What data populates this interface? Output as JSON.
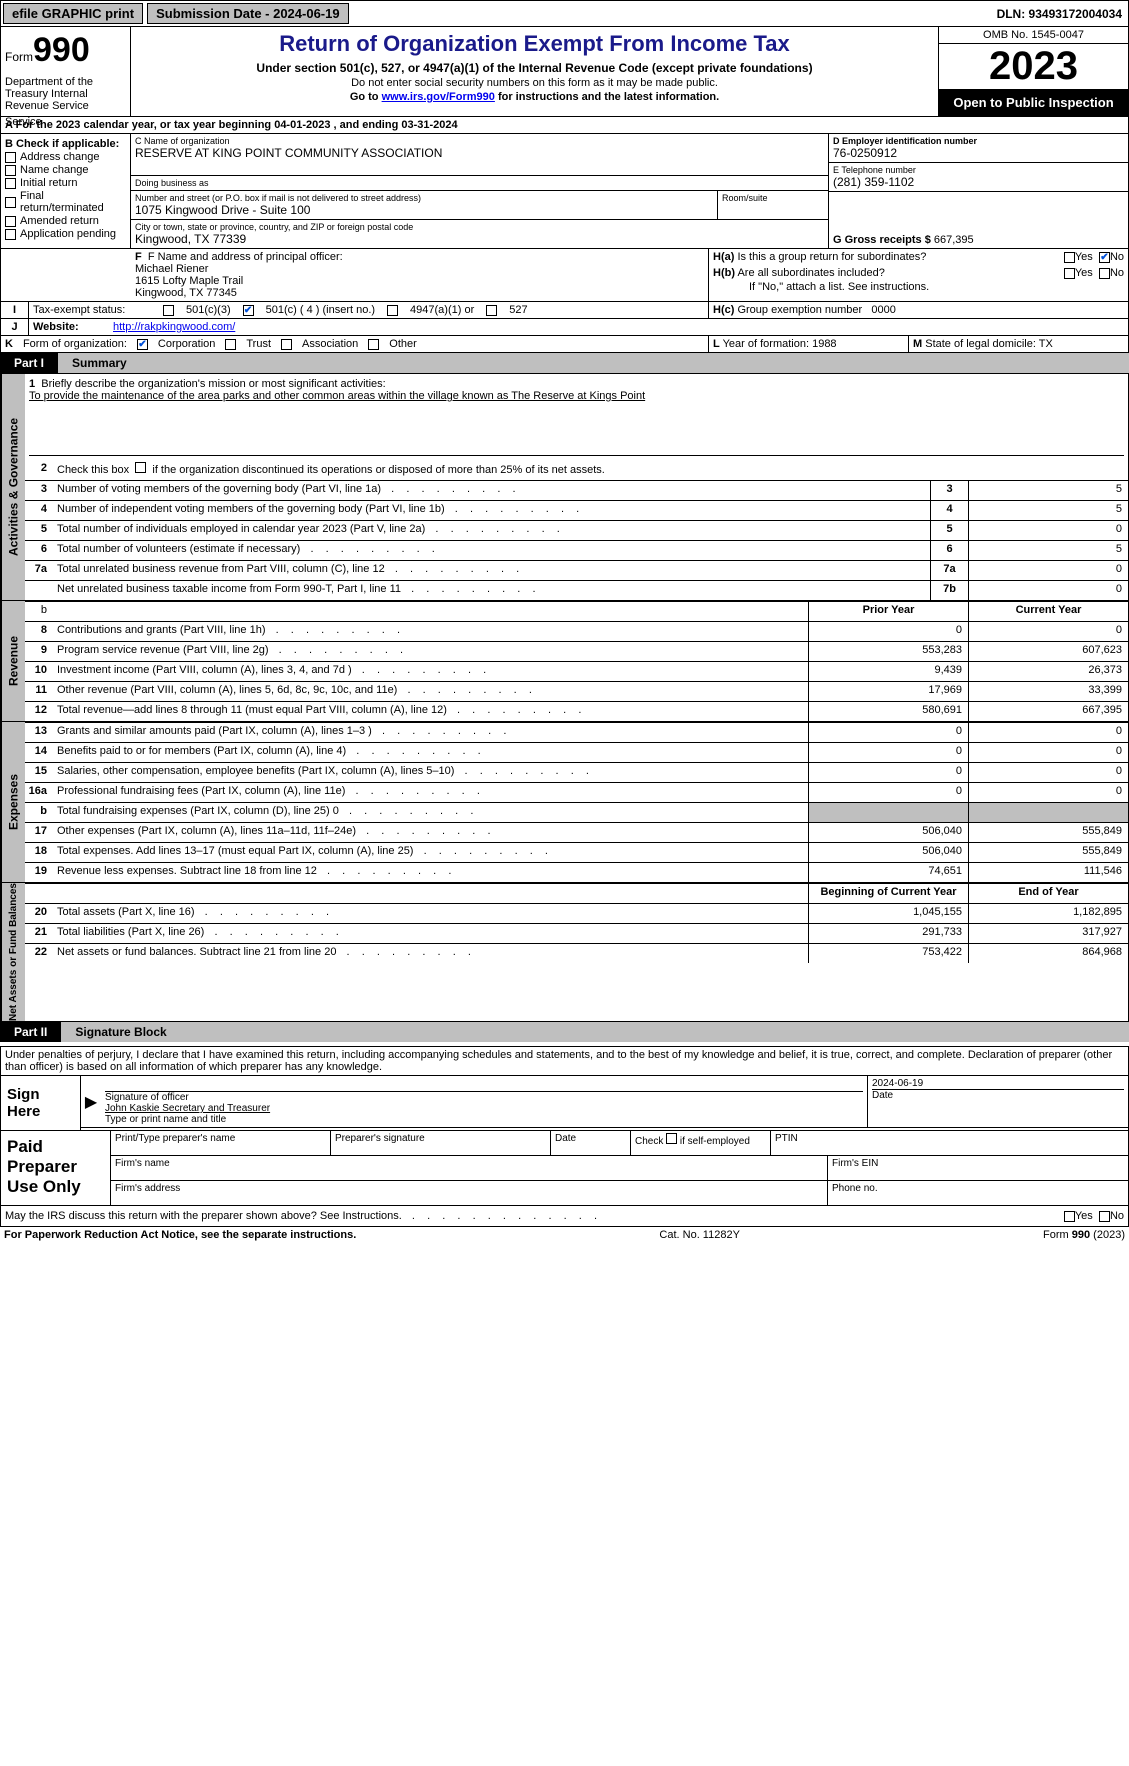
{
  "topbar": {
    "efile": "efile GRAPHIC print",
    "sub_label": "Submission Date - 2024-06-19",
    "dln": "DLN: 93493172004034"
  },
  "header": {
    "form_word": "Form",
    "form_num": "990",
    "dept": "Department of the Treasury Internal Revenue Service",
    "title": "Return of Organization Exempt From Income Tax",
    "sub": "Under section 501(c), 527, or 4947(a)(1) of the Internal Revenue Code (except private foundations)",
    "note1": "Do not enter social security numbers on this form as it may be made public.",
    "note2_pre": "Go to ",
    "note2_link": "www.irs.gov/Form990",
    "note2_post": " for instructions and the latest information.",
    "omb": "OMB No. 1545-0047",
    "year": "2023",
    "open": "Open to Public Inspection"
  },
  "line_a": "For the 2023 calendar year, or tax year beginning 04-01-2023    , and ending 03-31-2024",
  "box_b": {
    "label": "B Check if applicable:",
    "items": [
      "Address change",
      "Name change",
      "Initial return",
      "Final return/terminated",
      "Amended return",
      "Application pending"
    ]
  },
  "box_c": {
    "name_label": "C Name of organization",
    "name": "RESERVE AT KING POINT COMMUNITY ASSOCIATION",
    "dba_label": "Doing business as",
    "dba": "",
    "addr_label": "Number and street (or P.O. box if mail is not delivered to street address)",
    "addr": "1075 Kingwood Drive - Suite 100",
    "room_label": "Room/suite",
    "city_label": "City or town, state or province, country, and ZIP or foreign postal code",
    "city": "Kingwood, TX  77339"
  },
  "box_d": {
    "label": "D Employer identification number",
    "val": "76-0250912"
  },
  "box_e": {
    "label": "E Telephone number",
    "val": "(281) 359-1102"
  },
  "box_g": {
    "label": "G Gross receipts $",
    "val": "667,395"
  },
  "box_f": {
    "label": "F  Name and address of principal officer:",
    "name": "Michael Riener",
    "addr1": "1615 Lofty Maple Trail",
    "addr2": "Kingwood, TX  77345"
  },
  "box_h": {
    "a_label": "H(a)  Is this a group return for subordinates?",
    "b_label": "H(b)  Are all subordinates included?",
    "b_note": "If \"No,\" attach a list. See instructions.",
    "c_label": "H(c)  Group exemption number",
    "c_val": "0000",
    "yes": "Yes",
    "no": "No"
  },
  "tax_status": {
    "i": "I",
    "label": "Tax-exempt status:",
    "c3": "501(c)(3)",
    "c": "501(c) ( 4 ) (insert no.)",
    "a1": "4947(a)(1) or",
    "s527": "527"
  },
  "box_j": {
    "j": "J",
    "label": "Website:",
    "val": "http://rakpkingwood.com/"
  },
  "box_k": {
    "k": "K",
    "label": "Form of organization:",
    "corp": "Corporation",
    "trust": "Trust",
    "assoc": "Association",
    "other": "Other"
  },
  "box_l": {
    "label": "L Year of formation:",
    "val": "1988"
  },
  "box_m": {
    "label": "M State of legal domicile:",
    "val": "TX"
  },
  "part1": {
    "hdr": "Part I",
    "title": "Summary",
    "side1": "Activities & Governance",
    "side2": "Revenue",
    "side3": "Expenses",
    "side4": "Net Assets or Fund Balances",
    "mission_label": "1  Briefly describe the organization's mission or most significant activities:",
    "mission": "To provide the maintenance of the area parks and other common areas within the village known as The Reserve at Kings Point",
    "line2": "Check this box         if the organization discontinued its operations or disposed of more than 25% of its net assets.",
    "rows_gov": [
      {
        "num": "3",
        "text": "Number of voting members of the governing body (Part VI, line 1a)",
        "box": "3",
        "val": "5"
      },
      {
        "num": "4",
        "text": "Number of independent voting members of the governing body (Part VI, line 1b)",
        "box": "4",
        "val": "5"
      },
      {
        "num": "5",
        "text": "Total number of individuals employed in calendar year 2023 (Part V, line 2a)",
        "box": "5",
        "val": "0"
      },
      {
        "num": "6",
        "text": "Total number of volunteers (estimate if necessary)",
        "box": "6",
        "val": "5"
      },
      {
        "num": "7a",
        "text": "Total unrelated business revenue from Part VIII, column (C), line 12",
        "box": "7a",
        "val": "0"
      },
      {
        "num": "",
        "text": "Net unrelated business taxable income from Form 990-T, Part I, line 11",
        "box": "7b",
        "val": "0"
      }
    ],
    "prior_hdr": "Prior Year",
    "curr_hdr": "Current Year",
    "rows_rev": [
      {
        "num": "8",
        "text": "Contributions and grants (Part VIII, line 1h)",
        "prior": "0",
        "curr": "0"
      },
      {
        "num": "9",
        "text": "Program service revenue (Part VIII, line 2g)",
        "prior": "553,283",
        "curr": "607,623"
      },
      {
        "num": "10",
        "text": "Investment income (Part VIII, column (A), lines 3, 4, and 7d )",
        "prior": "9,439",
        "curr": "26,373"
      },
      {
        "num": "11",
        "text": "Other revenue (Part VIII, column (A), lines 5, 6d, 8c, 9c, 10c, and 11e)",
        "prior": "17,969",
        "curr": "33,399"
      },
      {
        "num": "12",
        "text": "Total revenue—add lines 8 through 11 (must equal Part VIII, column (A), line 12)",
        "prior": "580,691",
        "curr": "667,395"
      }
    ],
    "rows_exp": [
      {
        "num": "13",
        "text": "Grants and similar amounts paid (Part IX, column (A), lines 1–3 )",
        "prior": "0",
        "curr": "0"
      },
      {
        "num": "14",
        "text": "Benefits paid to or for members (Part IX, column (A), line 4)",
        "prior": "0",
        "curr": "0"
      },
      {
        "num": "15",
        "text": "Salaries, other compensation, employee benefits (Part IX, column (A), lines 5–10)",
        "prior": "0",
        "curr": "0"
      },
      {
        "num": "16a",
        "text": "Professional fundraising fees (Part IX, column (A), line 11e)",
        "prior": "0",
        "curr": "0"
      },
      {
        "num": "b",
        "text": "Total fundraising expenses (Part IX, column (D), line 25) 0",
        "prior": "",
        "curr": "",
        "shade": true
      },
      {
        "num": "17",
        "text": "Other expenses (Part IX, column (A), lines 11a–11d, 11f–24e)",
        "prior": "506,040",
        "curr": "555,849"
      },
      {
        "num": "18",
        "text": "Total expenses. Add lines 13–17 (must equal Part IX, column (A), line 25)",
        "prior": "506,040",
        "curr": "555,849"
      },
      {
        "num": "19",
        "text": "Revenue less expenses. Subtract line 18 from line 12",
        "prior": "74,651",
        "curr": "111,546"
      }
    ],
    "beg_hdr": "Beginning of Current Year",
    "end_hdr": "End of Year",
    "rows_net": [
      {
        "num": "20",
        "text": "Total assets (Part X, line 16)",
        "prior": "1,045,155",
        "curr": "1,182,895"
      },
      {
        "num": "21",
        "text": "Total liabilities (Part X, line 26)",
        "prior": "291,733",
        "curr": "317,927"
      },
      {
        "num": "22",
        "text": "Net assets or fund balances. Subtract line 21 from line 20",
        "prior": "753,422",
        "curr": "864,968"
      }
    ]
  },
  "part2": {
    "hdr": "Part II",
    "title": "Signature Block",
    "decl": "Under penalties of perjury, I declare that I have examined this return, including accompanying schedules and statements, and to the best of my knowledge and belief, it is true, correct, and complete. Declaration of preparer (other than officer) is based on all information of which preparer has any knowledge.",
    "sign_here": "Sign Here",
    "sig_officer": "Signature of officer",
    "sig_name": "John Kaskie Secretary and Treasurer",
    "sig_type": "Type or print name and title",
    "sig_date_label": "Date",
    "sig_date": "2024-06-19",
    "paid": "Paid Preparer Use Only",
    "prep_name": "Print/Type preparer's name",
    "prep_sig": "Preparer's signature",
    "prep_date": "Date",
    "prep_self": "Check        if self-employed",
    "ptin": "PTIN",
    "firm_name": "Firm's name",
    "firm_ein": "Firm's EIN",
    "firm_addr": "Firm's address",
    "phone": "Phone no.",
    "discuss": "May the IRS discuss this return with the preparer shown above? See Instructions."
  },
  "footer": {
    "pra": "For Paperwork Reduction Act Notice, see the separate instructions.",
    "cat": "Cat. No. 11282Y",
    "form": "Form 990 (2023)"
  },
  "yes": "Yes",
  "no": "No"
}
